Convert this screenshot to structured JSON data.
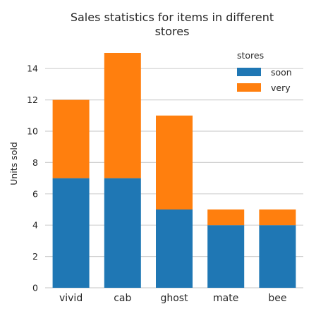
{
  "chart_data": {
    "type": "bar",
    "stacked": true,
    "title": "Sales statistics for items in different stores",
    "title_lines": [
      "Sales statistics for items in different",
      "stores"
    ],
    "xlabel": "",
    "ylabel": "Units sold",
    "categories": [
      "vivid",
      "cab",
      "ghost",
      "mate",
      "bee"
    ],
    "series": [
      {
        "name": "soon",
        "color": "#1f77b4",
        "values": [
          7,
          7,
          5,
          4,
          4
        ]
      },
      {
        "name": "very",
        "color": "#ff7f0e",
        "values": [
          5,
          8,
          6,
          1,
          1
        ]
      }
    ],
    "ylim": [
      0,
      15.5
    ],
    "yticks": [
      0,
      2,
      4,
      6,
      8,
      10,
      12,
      14
    ],
    "grid": true,
    "legend": {
      "title": "stores",
      "position": "top-right"
    }
  }
}
